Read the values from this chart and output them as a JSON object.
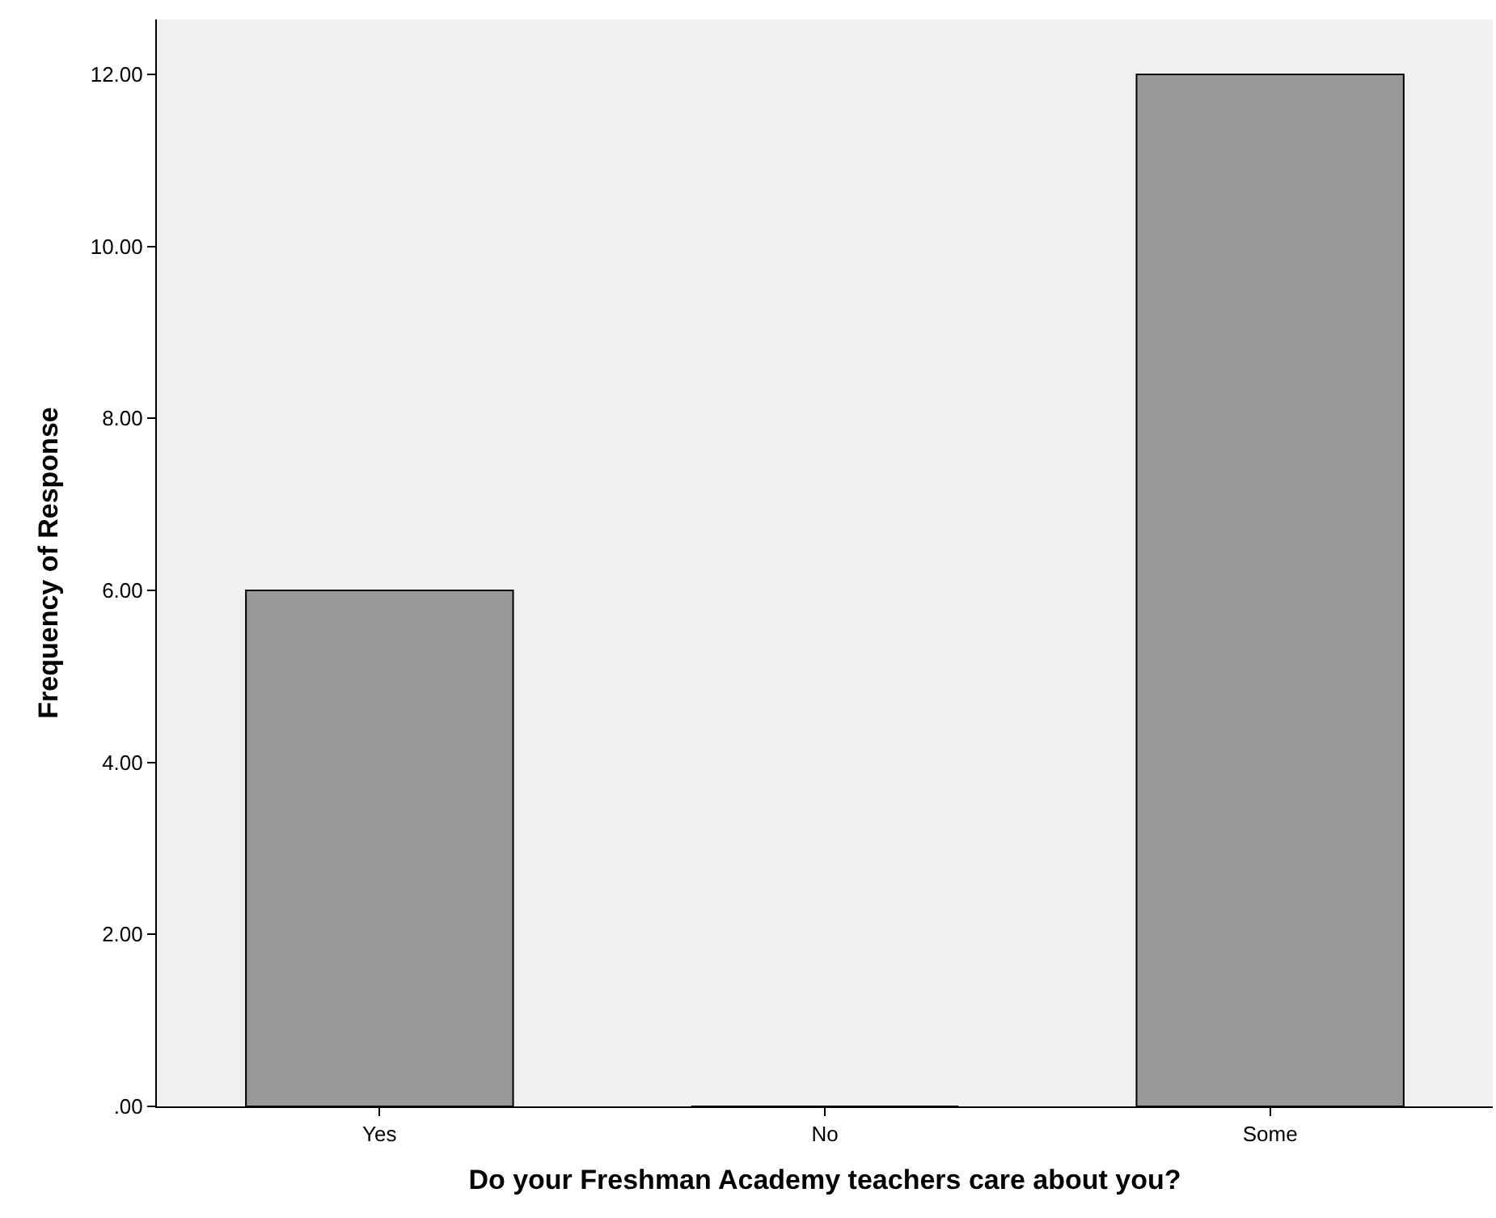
{
  "chart_data": {
    "type": "bar",
    "xlabel": "Do your Freshman Academy teachers care about you?",
    "ylabel": "Frequency of Response",
    "categories": [
      "Yes",
      "No",
      "Some"
    ],
    "values": [
      6,
      0,
      12
    ],
    "color": "#999999",
    "ylim": [
      0,
      12.64
    ],
    "yticks": [
      {
        "value": 0,
        "label": ".00"
      },
      {
        "value": 2,
        "label": "2.00"
      },
      {
        "value": 4,
        "label": "4.00"
      },
      {
        "value": 6,
        "label": "6.00"
      },
      {
        "value": 8,
        "label": "8.00"
      },
      {
        "value": 10,
        "label": "10.00"
      },
      {
        "value": 12,
        "label": "12.00"
      }
    ],
    "grid": false
  }
}
